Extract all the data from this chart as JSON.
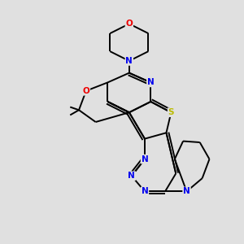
{
  "background_color": "#e0e0e0",
  "bond_color": "#000000",
  "atom_colors": {
    "N": "#0000ee",
    "O": "#ee0000",
    "S": "#bbbb00",
    "C": "#000000"
  },
  "figsize": [
    3.0,
    3.0
  ],
  "dpi": 100
}
